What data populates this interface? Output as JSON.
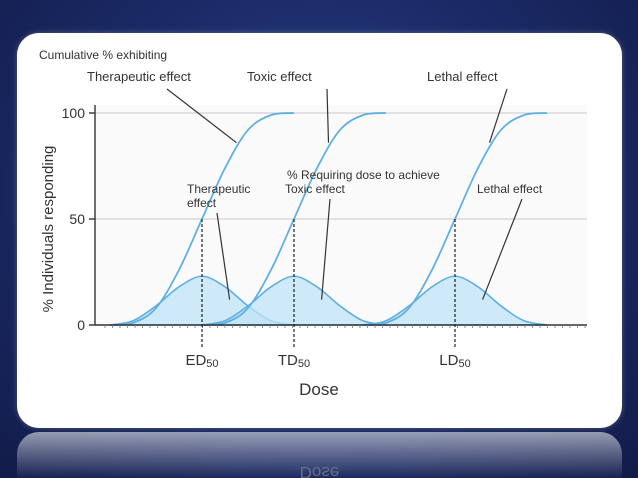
{
  "chart_data": {
    "type": "line",
    "header": "Cumulative % exhibiting",
    "density_header": "% Requiring dose to achieve",
    "xlabel": "Dose",
    "ylabel": "% Individuals responding",
    "yticks": [
      0,
      50,
      100
    ],
    "ylim": [
      0,
      100
    ],
    "x_scale_note": "dose axis unlabeled numerically",
    "series": [
      {
        "kind": "cumulative",
        "name": "Therapeutic effect",
        "x": [
          0,
          10,
          20,
          30,
          40,
          50,
          60,
          70,
          80
        ],
        "y": [
          0,
          1,
          8,
          26,
          50,
          74,
          92,
          99,
          100
        ]
      },
      {
        "kind": "cumulative",
        "name": "Toxic effect",
        "x": [
          40,
          50,
          60,
          70,
          80,
          90,
          100,
          110,
          120
        ],
        "y": [
          0,
          1,
          8,
          26,
          50,
          74,
          92,
          99,
          100
        ]
      },
      {
        "kind": "cumulative",
        "name": "Lethal effect",
        "x": [
          110,
          120,
          130,
          140,
          150,
          160,
          170,
          180,
          190
        ],
        "y": [
          0,
          1,
          8,
          26,
          50,
          74,
          92,
          99,
          100
        ]
      },
      {
        "kind": "density",
        "name": "Therapeutic effect",
        "label_lines": [
          "Therapeutic",
          "effect"
        ],
        "x": [
          0,
          10,
          20,
          30,
          40,
          50,
          60,
          70,
          80
        ],
        "y": [
          0,
          2,
          9,
          18,
          23,
          18,
          9,
          2,
          0
        ]
      },
      {
        "kind": "density",
        "name": "Toxic effect",
        "label_lines": [
          "Toxic effect"
        ],
        "x": [
          40,
          50,
          60,
          70,
          80,
          90,
          100,
          110,
          120
        ],
        "y": [
          0,
          2,
          9,
          18,
          23,
          18,
          9,
          2,
          0
        ]
      },
      {
        "kind": "density",
        "name": "Lethal effect",
        "label_lines": [
          "Lethal effect"
        ],
        "x": [
          110,
          120,
          130,
          140,
          150,
          160,
          170,
          180,
          190
        ],
        "y": [
          0,
          2,
          9,
          18,
          23,
          18,
          9,
          2,
          0
        ]
      }
    ],
    "markers": [
      {
        "base": "ED",
        "sub": "50",
        "x": 40
      },
      {
        "base": "TD",
        "sub": "50",
        "x": 80
      },
      {
        "base": "LD",
        "sub": "50",
        "x": 150
      }
    ],
    "reference_line_y": 50,
    "colors": {
      "curve": "#5fb0e2",
      "fill": "#bfe3f6",
      "axis": "#333333",
      "grid": "#c8c8c8"
    }
  },
  "reflection_text": "Dose"
}
